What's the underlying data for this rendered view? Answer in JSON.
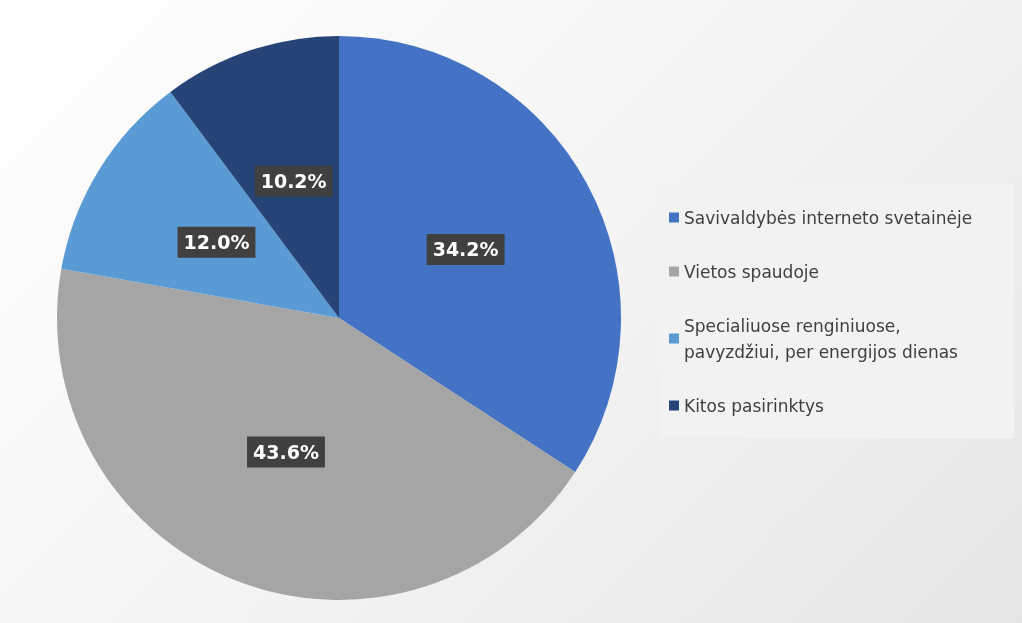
{
  "chart_data": {
    "type": "pie",
    "categories": [
      "Savivaldybės interneto svetainėje",
      "Vietos spaudoje",
      "Specialiuose renginiuose, pavyzdžiui, per energijos dienas",
      "Kitos pasirinktys"
    ],
    "values": [
      34.2,
      43.6,
      12.0,
      10.2
    ],
    "value_labels": [
      "34.2%",
      "43.6%",
      "12.0%",
      "10.2%"
    ],
    "colors": [
      "#4472c4",
      "#a5a5a5",
      "#5b9bd5",
      "#264478"
    ],
    "legend": "right"
  }
}
